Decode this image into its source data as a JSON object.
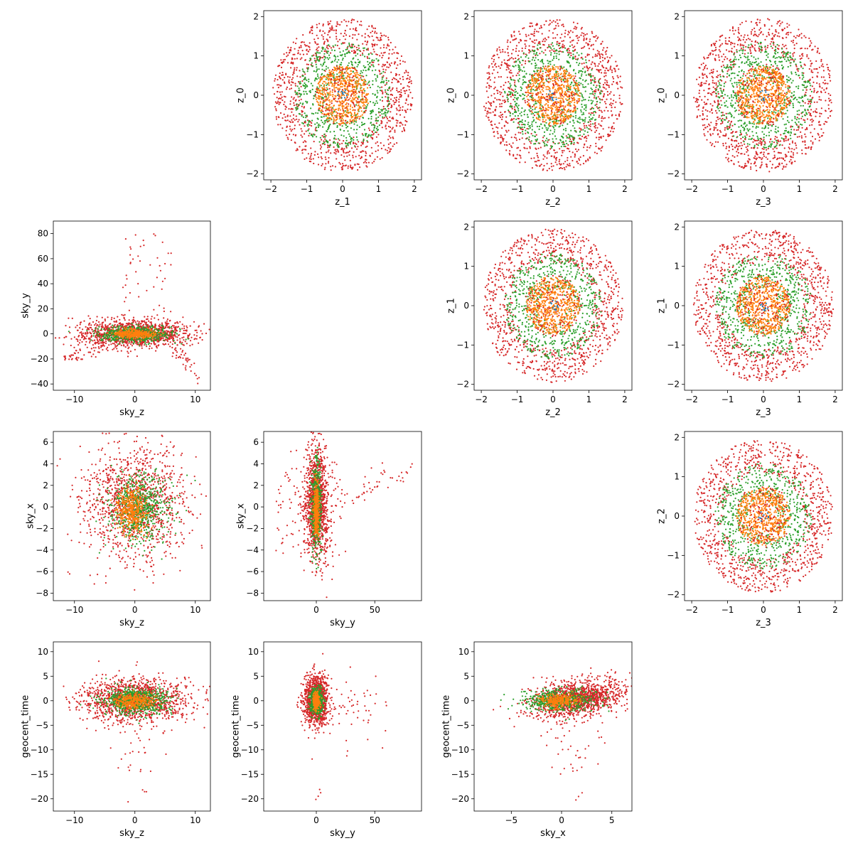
{
  "figure": {
    "colors": {
      "group_a": "#1f77b4",
      "group_b": "#ff7f0e",
      "group_c": "#2ca02c",
      "group_d": "#d62728"
    }
  },
  "chart_data": [
    {
      "id": "z1_z0",
      "type": "scatter",
      "xlabel": "z_1",
      "ylabel": "z_0",
      "xlim": [
        -2.2,
        2.2
      ],
      "ylim": [
        -2.15,
        2.15
      ],
      "xticks": [
        -2,
        -1,
        0,
        1,
        2
      ],
      "yticks": [
        -2,
        -1,
        0,
        1,
        2
      ],
      "pattern": "rings",
      "grid": false
    },
    {
      "id": "z2_z0",
      "type": "scatter",
      "xlabel": "z_2",
      "ylabel": "z_0",
      "xlim": [
        -2.2,
        2.2
      ],
      "ylim": [
        -2.15,
        2.15
      ],
      "xticks": [
        -2,
        -1,
        0,
        1,
        2
      ],
      "yticks": [
        -2,
        -1,
        0,
        1,
        2
      ],
      "pattern": "rings",
      "grid": false
    },
    {
      "id": "z3_z0",
      "type": "scatter",
      "xlabel": "z_3",
      "ylabel": "z_0",
      "xlim": [
        -2.2,
        2.2
      ],
      "ylim": [
        -2.15,
        2.15
      ],
      "xticks": [
        -2,
        -1,
        0,
        1,
        2
      ],
      "yticks": [
        -2,
        -1,
        0,
        1,
        2
      ],
      "pattern": "rings",
      "grid": false
    },
    {
      "id": "skyz_skyy",
      "type": "scatter",
      "xlabel": "sky_z",
      "ylabel": "sky_y",
      "xlim": [
        -13.5,
        12.5
      ],
      "ylim": [
        -45,
        90
      ],
      "xticks": [
        -10,
        0,
        10
      ],
      "yticks": [
        -40,
        -20,
        0,
        20,
        40,
        60,
        80
      ],
      "pattern": "skyz_skyy",
      "grid": false
    },
    {
      "id": "z2_z1",
      "type": "scatter",
      "xlabel": "z_2",
      "ylabel": "z_1",
      "xlim": [
        -2.2,
        2.2
      ],
      "ylim": [
        -2.15,
        2.15
      ],
      "xticks": [
        -2,
        -1,
        0,
        1,
        2
      ],
      "yticks": [
        -2,
        -1,
        0,
        1,
        2
      ],
      "pattern": "rings",
      "grid": false
    },
    {
      "id": "z3_z1",
      "type": "scatter",
      "xlabel": "z_3",
      "ylabel": "z_1",
      "xlim": [
        -2.2,
        2.2
      ],
      "ylim": [
        -2.15,
        2.15
      ],
      "xticks": [
        -2,
        -1,
        0,
        1,
        2
      ],
      "yticks": [
        -2,
        -1,
        0,
        1,
        2
      ],
      "pattern": "rings",
      "grid": false
    },
    {
      "id": "skyz_skyx",
      "type": "scatter",
      "xlabel": "sky_z",
      "ylabel": "sky_x",
      "xlim": [
        -13.5,
        12.5
      ],
      "ylim": [
        -8.7,
        7.0
      ],
      "xticks": [
        -10,
        0,
        10
      ],
      "yticks": [
        -8,
        -6,
        -4,
        -2,
        0,
        2,
        4,
        6
      ],
      "pattern": "skyz_skyx",
      "grid": false
    },
    {
      "id": "skyy_skyx",
      "type": "scatter",
      "xlabel": "sky_y",
      "ylabel": "sky_x",
      "xlim": [
        -45,
        90
      ],
      "ylim": [
        -8.7,
        7.0
      ],
      "xticks": [
        0,
        50
      ],
      "yticks": [
        -8,
        -6,
        -4,
        -2,
        0,
        2,
        4,
        6
      ],
      "pattern": "skyy_skyx",
      "grid": false
    },
    {
      "id": "z3_z2",
      "type": "scatter",
      "xlabel": "z_3",
      "ylabel": "z_2",
      "xlim": [
        -2.2,
        2.2
      ],
      "ylim": [
        -2.15,
        2.15
      ],
      "xticks": [
        -2,
        -1,
        0,
        1,
        2
      ],
      "yticks": [
        -2,
        -1,
        0,
        1,
        2
      ],
      "pattern": "rings",
      "grid": false
    },
    {
      "id": "skyz_time",
      "type": "scatter",
      "xlabel": "sky_z",
      "ylabel": "geocent_time",
      "xlim": [
        -13.5,
        12.5
      ],
      "ylim": [
        -22.5,
        12.0
      ],
      "xticks": [
        -10,
        0,
        10
      ],
      "yticks": [
        -20,
        -15,
        -10,
        -5,
        0,
        5,
        10
      ],
      "pattern": "skyz_time",
      "grid": false
    },
    {
      "id": "skyy_time",
      "type": "scatter",
      "xlabel": "sky_y",
      "ylabel": "geocent_time",
      "xlim": [
        -45,
        90
      ],
      "ylim": [
        -22.5,
        12.0
      ],
      "xticks": [
        0,
        50
      ],
      "yticks": [
        -20,
        -15,
        -10,
        -5,
        0,
        5,
        10
      ],
      "pattern": "skyy_time",
      "grid": false
    },
    {
      "id": "skyx_time",
      "type": "scatter",
      "xlabel": "sky_x",
      "ylabel": "geocent_time",
      "xlim": [
        -8.7,
        7.0
      ],
      "ylim": [
        -22.5,
        12.0
      ],
      "xticks": [
        -5,
        0,
        5
      ],
      "yticks": [
        -20,
        -15,
        -10,
        -5,
        0,
        5,
        10
      ],
      "pattern": "skyx_time",
      "grid": false
    }
  ]
}
